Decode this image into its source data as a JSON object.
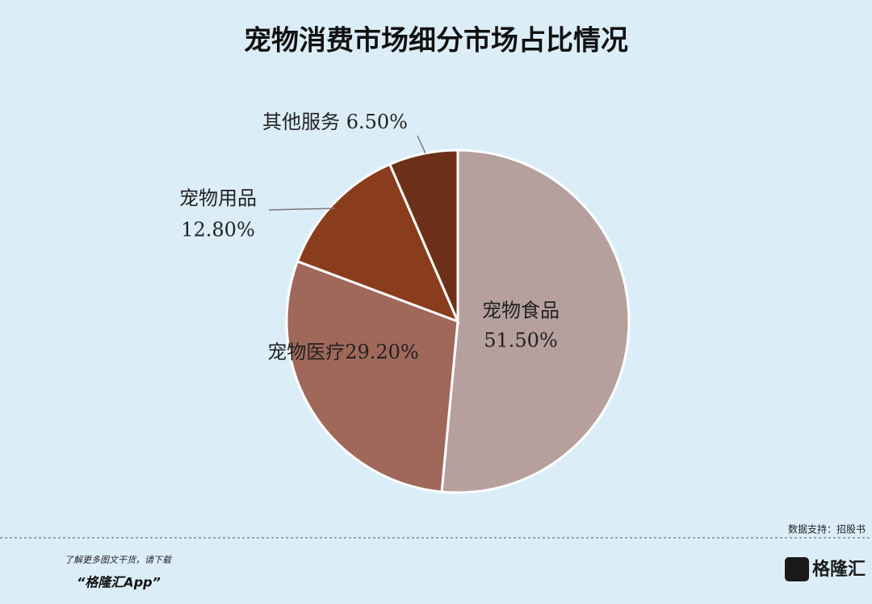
{
  "chart_data": {
    "type": "pie",
    "title": "宠物消费市场细分市场占比情况",
    "categories": [
      "宠物食品",
      "宠物医疗",
      "宠物用品",
      "其他服务"
    ],
    "values": [
      51.5,
      29.2,
      12.8,
      6.5
    ],
    "value_labels": [
      "51.50%",
      "29.20%",
      "12.80%",
      "6.50%"
    ],
    "colors": [
      "#b5a09e",
      "#a0685a",
      "#8a3d1d",
      "#6c3118"
    ]
  },
  "footer": {
    "source": "数据支持：招股书",
    "promo": "了解更多图文干货，请下载",
    "app": "“格隆汇App”",
    "brand": "格隆汇"
  }
}
